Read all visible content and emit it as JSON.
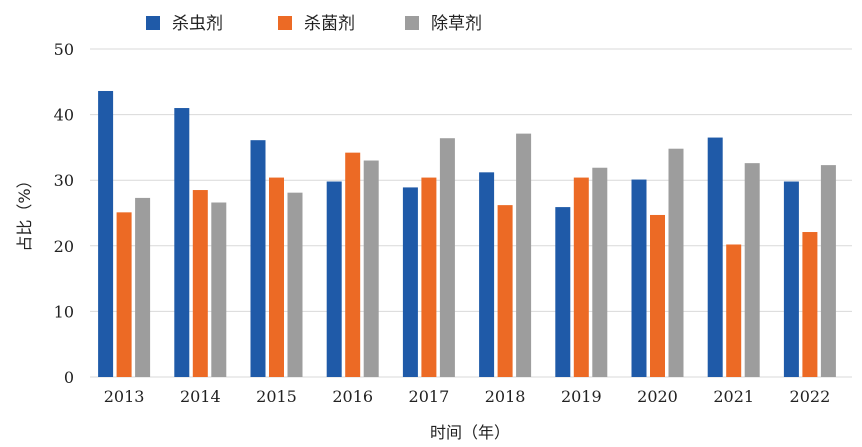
{
  "chart_data": {
    "type": "bar",
    "title": "",
    "xlabel": "时间（年）",
    "ylabel": "占比（%）",
    "ylim": [
      0,
      50
    ],
    "yticks": [
      0,
      10,
      20,
      30,
      40,
      50
    ],
    "grid": true,
    "legend_position": "top-left",
    "categories": [
      "2013",
      "2014",
      "2015",
      "2016",
      "2017",
      "2018",
      "2019",
      "2020",
      "2021",
      "2022"
    ],
    "series": [
      {
        "name": "杀虫剂",
        "color": "#1f5aa8",
        "values": [
          43.6,
          41.0,
          36.1,
          29.8,
          28.9,
          31.2,
          25.9,
          30.1,
          36.5,
          29.8
        ]
      },
      {
        "name": "杀菌剂",
        "color": "#ec6a25",
        "values": [
          25.1,
          28.5,
          30.4,
          34.2,
          30.4,
          26.2,
          30.4,
          24.7,
          20.2,
          22.1
        ]
      },
      {
        "name": "除草剂",
        "color": "#9d9d9d",
        "values": [
          27.3,
          26.6,
          28.1,
          33.0,
          36.4,
          37.1,
          31.9,
          34.8,
          32.6,
          32.3
        ]
      }
    ]
  }
}
